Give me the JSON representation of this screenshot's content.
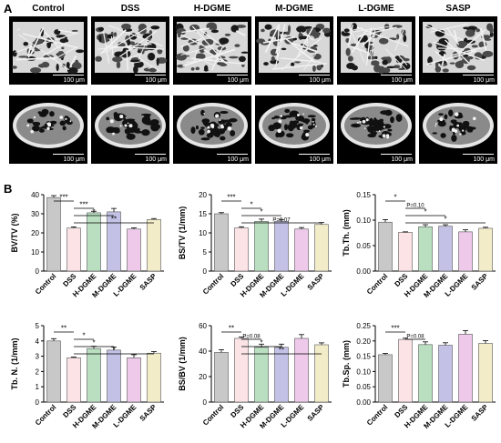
{
  "panel_a_label": "A",
  "panel_b_label": "B",
  "groups": [
    "Control",
    "DSS",
    "H-DGME",
    "M-DGME",
    "L-DGME",
    "SASP"
  ],
  "scale_bar": "100 μm",
  "bar_colors": [
    "#c8c8c8",
    "#fbe3e6",
    "#b9dfc0",
    "#c3c2e6",
    "#eec9ea",
    "#f2ecc9"
  ],
  "chart_data": [
    {
      "type": "bar",
      "ylabel": "BV/TV (%)",
      "ylim": [
        0,
        40
      ],
      "yticks": [
        0,
        10,
        20,
        30,
        40
      ],
      "categories": [
        "Control",
        "DSS",
        "H-DGME",
        "M-DGME",
        "L-DGME",
        "SASP"
      ],
      "values": [
        38.5,
        22.5,
        30.5,
        31.0,
        22.0,
        27.0
      ],
      "errors": [
        1.0,
        0.6,
        0.8,
        1.8,
        0.6,
        0.5
      ],
      "sig": [
        {
          "from": 0,
          "to": 1,
          "label": "***"
        },
        {
          "from": 1,
          "to": 2,
          "label": "***"
        },
        {
          "from": 1,
          "to": 3,
          "label": "*"
        },
        {
          "from": 1,
          "to": 5,
          "label": "**"
        }
      ]
    },
    {
      "type": "bar",
      "ylabel": "BS/TV (1/mm)",
      "ylim": [
        0,
        20
      ],
      "yticks": [
        0,
        5,
        10,
        15,
        20
      ],
      "categories": [
        "Control",
        "DSS",
        "H-DGME",
        "M-DGME",
        "L-DGME",
        "SASP"
      ],
      "values": [
        15.0,
        11.3,
        13.0,
        13.0,
        11.0,
        12.2
      ],
      "errors": [
        0.3,
        0.3,
        0.6,
        0.5,
        0.4,
        0.5
      ],
      "sig": [
        {
          "from": 0,
          "to": 1,
          "label": "***"
        },
        {
          "from": 1,
          "to": 2,
          "label": "*"
        },
        {
          "from": 1,
          "to": 3,
          "label": "*"
        },
        {
          "from": 1,
          "to": 5,
          "label": "P=0.07"
        }
      ]
    },
    {
      "type": "bar",
      "ylabel": "Tb.Th. (mm)",
      "ylim": [
        0,
        0.15
      ],
      "yticks": [
        0.0,
        0.05,
        0.1,
        0.15
      ],
      "categories": [
        "Control",
        "DSS",
        "H-DGME",
        "M-DGME",
        "L-DGME",
        "SASP"
      ],
      "values": [
        0.096,
        0.076,
        0.087,
        0.088,
        0.077,
        0.084
      ],
      "errors": [
        0.005,
        0.001,
        0.004,
        0.003,
        0.004,
        0.002
      ],
      "sig": [
        {
          "from": 0,
          "to": 1,
          "label": "*"
        },
        {
          "from": 1,
          "to": 2,
          "label": "P=0.10"
        },
        {
          "from": 1,
          "to": 3,
          "label": "*"
        },
        {
          "from": 1,
          "to": 5,
          "label": "*"
        }
      ]
    },
    {
      "type": "bar",
      "ylabel": "Tb. N. (1/mm)",
      "ylim": [
        0,
        5
      ],
      "yticks": [
        0,
        1,
        2,
        3,
        4,
        5
      ],
      "categories": [
        "Control",
        "DSS",
        "H-DGME",
        "M-DGME",
        "L-DGME",
        "SASP"
      ],
      "values": [
        4.0,
        2.9,
        3.5,
        3.4,
        2.9,
        3.2
      ],
      "errors": [
        0.15,
        0.05,
        0.15,
        0.2,
        0.2,
        0.1
      ],
      "sig": [
        {
          "from": 0,
          "to": 1,
          "label": "**"
        },
        {
          "from": 1,
          "to": 2,
          "label": "*"
        },
        {
          "from": 1,
          "to": 3,
          "label": "*"
        },
        {
          "from": 1,
          "to": 5,
          "label": "*"
        }
      ]
    },
    {
      "type": "bar",
      "ylabel": "BS/BV (1/mm)",
      "ylim": [
        0,
        60
      ],
      "yticks": [
        0,
        20,
        40,
        60
      ],
      "categories": [
        "Control",
        "DSS",
        "H-DGME",
        "M-DGME",
        "L-DGME",
        "SASP"
      ],
      "values": [
        39.0,
        50.0,
        43.0,
        43.0,
        50.0,
        45.0
      ],
      "errors": [
        2.0,
        1.0,
        2.5,
        2.5,
        3.0,
        1.5
      ],
      "sig": [
        {
          "from": 0,
          "to": 1,
          "label": "**"
        },
        {
          "from": 1,
          "to": 2,
          "label": "P=0.08"
        },
        {
          "from": 1,
          "to": 3,
          "label": "*"
        },
        {
          "from": 1,
          "to": 5,
          "label": "**"
        }
      ]
    },
    {
      "type": "bar",
      "ylabel": "Tb.Sp. (mm)",
      "ylim": [
        0,
        0.25
      ],
      "yticks": [
        0.0,
        0.05,
        0.1,
        0.15,
        0.2,
        0.25
      ],
      "categories": [
        "Control",
        "DSS",
        "H-DGME",
        "M-DGME",
        "L-DGME",
        "SASP"
      ],
      "values": [
        0.155,
        0.205,
        0.188,
        0.186,
        0.222,
        0.192
      ],
      "errors": [
        0.004,
        0.004,
        0.009,
        0.008,
        0.012,
        0.009
      ],
      "sig": [
        {
          "from": 0,
          "to": 1,
          "label": "***"
        },
        {
          "from": 1,
          "to": 2,
          "label": "P=0.08"
        }
      ]
    }
  ]
}
